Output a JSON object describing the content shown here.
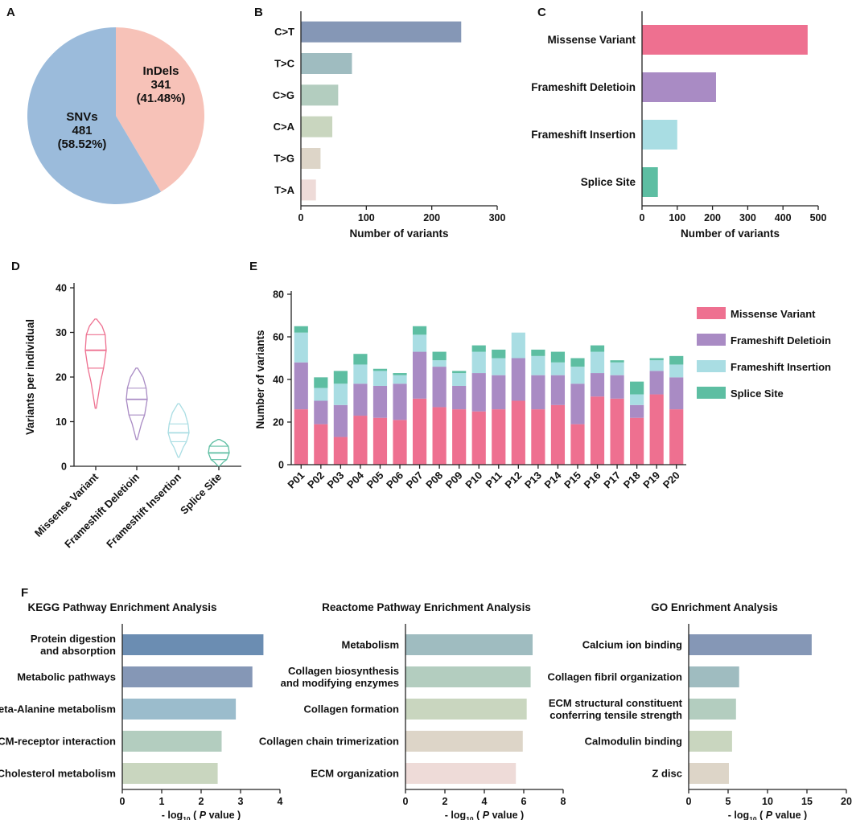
{
  "panel_labels": {
    "A": "A",
    "B": "B",
    "C": "C",
    "D": "D",
    "E": "E",
    "F": "F"
  },
  "colors": {
    "missense": "#ee7090",
    "deletion": "#a98bc4",
    "insertion": "#a9dde3",
    "splice": "#5dbea2",
    "snv": "#9bbbdb",
    "indel": "#f7c2b8"
  },
  "chart_data": [
    {
      "id": "A",
      "type": "pie",
      "slices": [
        {
          "name": "SNVs",
          "value": 481,
          "percent": "(58.52%)",
          "color": "#9bbbdb"
        },
        {
          "name": "InDels",
          "value": 341,
          "percent": "(41.48%)",
          "color": "#f7c2b8"
        }
      ]
    },
    {
      "id": "B",
      "type": "bar",
      "orientation": "horizontal",
      "categories": [
        "C>T",
        "T>C",
        "C>G",
        "C>A",
        "T>G",
        "T>A"
      ],
      "values": [
        245,
        78,
        57,
        48,
        30,
        23
      ],
      "colors": [
        "#8597b6",
        "#9fbcc0",
        "#b3cdbf",
        "#c9d6bf",
        "#ddd5c8",
        "#eedbd8"
      ],
      "xlim": [
        0,
        300
      ],
      "xticks": [
        0,
        100,
        200,
        300
      ],
      "xlabel": "Number of variants"
    },
    {
      "id": "C",
      "type": "bar",
      "orientation": "horizontal",
      "categories": [
        "Missense Variant",
        "Frameshift Deletioin",
        "Frameshift Insertion",
        "Splice Site"
      ],
      "values": [
        470,
        210,
        100,
        45
      ],
      "colors": [
        "#ee7090",
        "#a98bc4",
        "#a9dde3",
        "#5dbea2"
      ],
      "xlim": [
        0,
        500
      ],
      "xticks": [
        0,
        100,
        200,
        300,
        400,
        500
      ],
      "xlabel": "Number of variants"
    },
    {
      "id": "D",
      "type": "violin",
      "categories": [
        "Missense Variant",
        "Frameshift Deletioin",
        "Frameshift Insertion",
        "Splice Site"
      ],
      "colors": [
        "#ee7090",
        "#a98bc4",
        "#a9dde3",
        "#5dbea2"
      ],
      "ylabel": "Variants per individual",
      "ylim": [
        0,
        40
      ],
      "yticks": [
        0,
        10,
        20,
        30,
        40
      ],
      "violins": [
        {
          "min": 13,
          "max": 33,
          "q1": 22,
          "median": 26,
          "q3": 29.5
        },
        {
          "min": 6,
          "max": 22,
          "q1": 11.5,
          "median": 15,
          "q3": 17.5
        },
        {
          "min": 2,
          "max": 14,
          "q1": 5.5,
          "median": 7.5,
          "q3": 9.5
        },
        {
          "min": 0,
          "max": 6,
          "q1": 1.5,
          "median": 3,
          "q3": 4.5
        }
      ]
    },
    {
      "id": "E",
      "type": "bar",
      "stacked": true,
      "categories": [
        "P01",
        "P02",
        "P03",
        "P04",
        "P05",
        "P06",
        "P07",
        "P08",
        "P09",
        "P10",
        "P11",
        "P12",
        "P13",
        "P14",
        "P15",
        "P16",
        "P17",
        "P18",
        "P19",
        "P20"
      ],
      "ylabel": "Number of variants",
      "ylim": [
        0,
        80
      ],
      "yticks": [
        0,
        20,
        40,
        60,
        80
      ],
      "series": [
        {
          "name": "Missense Variant",
          "color": "#ee7090",
          "values": [
            26,
            19,
            13,
            23,
            22,
            21,
            31,
            27,
            26,
            25,
            26,
            30,
            26,
            28,
            19,
            32,
            31,
            22,
            33,
            26
          ]
        },
        {
          "name": "Frameshift Deletioin",
          "color": "#a98bc4",
          "values": [
            22,
            11,
            15,
            15,
            15,
            17,
            22,
            19,
            11,
            18,
            16,
            20,
            16,
            14,
            19,
            11,
            11,
            6,
            11,
            15
          ]
        },
        {
          "name": "Frameshift Insertion",
          "color": "#a9dde3",
          "values": [
            14,
            6,
            10,
            9,
            7,
            4,
            8,
            3,
            6,
            10,
            8,
            12,
            9,
            6,
            8,
            10,
            6,
            5,
            5,
            6
          ]
        },
        {
          "name": "Splice Site",
          "color": "#5dbea2",
          "values": [
            3,
            5,
            6,
            5,
            1,
            1,
            4,
            4,
            1,
            3,
            4,
            0,
            3,
            5,
            4,
            3,
            1,
            6,
            1,
            4
          ]
        }
      ]
    },
    {
      "id": "F1",
      "type": "bar",
      "orientation": "horizontal",
      "title": "KEGG Pathway Enrichment Analysis",
      "categories": [
        [
          "Protein digestion",
          "and absorption"
        ],
        [
          "Metabolic pathways"
        ],
        [
          "Beta-Alanine metabolism"
        ],
        [
          "ECM-receptor interaction"
        ],
        [
          "Cholesterol metabolism"
        ]
      ],
      "values": [
        3.58,
        3.3,
        2.88,
        2.52,
        2.42
      ],
      "colors": [
        "#6b8db2",
        "#8597b6",
        "#9bbccc",
        "#b3cdbf",
        "#c9d6bf"
      ],
      "xlim": [
        0,
        4
      ],
      "xticks": [
        0,
        1,
        2,
        3,
        4
      ],
      "xlabel_parts": [
        "- log",
        "10",
        "( ",
        "P",
        " value )"
      ]
    },
    {
      "id": "F2",
      "type": "bar",
      "orientation": "horizontal",
      "title": "Reactome Pathway Enrichment Analysis",
      "categories": [
        [
          "Metabolism"
        ],
        [
          "Collagen biosynthesis",
          "and modifying enzymes"
        ],
        [
          "Collagen formation"
        ],
        [
          "Collagen chain trimerization"
        ],
        [
          "ECM organization"
        ]
      ],
      "values": [
        6.45,
        6.35,
        6.15,
        5.95,
        5.6
      ],
      "colors": [
        "#9fbcc0",
        "#b3cdbf",
        "#c9d6bf",
        "#ddd5c8",
        "#eedbd8"
      ],
      "xlim": [
        0,
        8
      ],
      "xticks": [
        0,
        2,
        4,
        6,
        8
      ],
      "xlabel_parts": [
        "- log",
        "10",
        "( ",
        "P",
        " value )"
      ]
    },
    {
      "id": "F3",
      "type": "bar",
      "orientation": "horizontal",
      "title": "GO Enrichment Analysis",
      "categories": [
        [
          "Calcium ion binding"
        ],
        [
          "Collagen fibril organization"
        ],
        [
          "ECM structural constituent",
          "conferring tensile strength"
        ],
        [
          "Calmodulin binding"
        ],
        [
          "Z disc"
        ]
      ],
      "values": [
        15.6,
        6.4,
        6.0,
        5.5,
        5.1
      ],
      "colors": [
        "#8597b6",
        "#9fbcc0",
        "#b3cdbf",
        "#c9d6bf",
        "#ddd5c8"
      ],
      "xlim": [
        0,
        20
      ],
      "xticks": [
        0,
        5,
        10,
        15,
        20
      ],
      "xlabel_parts": [
        "- log",
        "10",
        "( ",
        "P",
        " value )"
      ]
    }
  ]
}
